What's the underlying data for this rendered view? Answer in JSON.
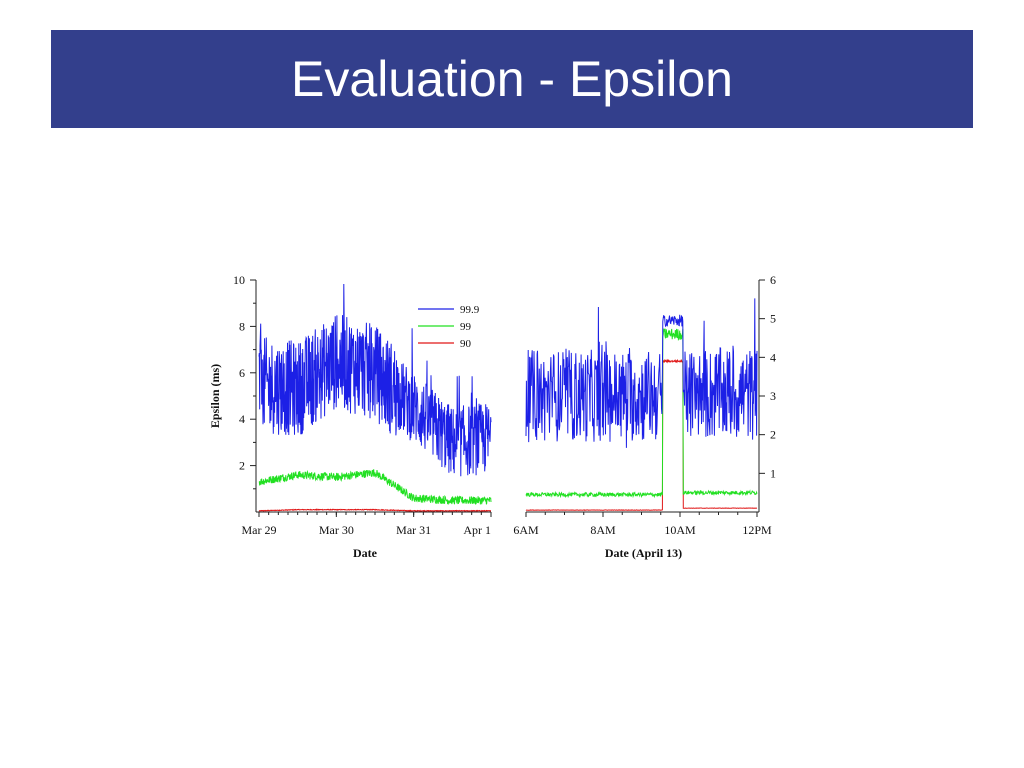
{
  "slide": {
    "title": "Evaluation - Epsilon"
  },
  "colors": {
    "title_bg": "#333f8c",
    "s999": "#1c20e6",
    "s99": "#22e022",
    "s90": "#e01818"
  },
  "chart_data": [
    {
      "type": "line",
      "xlabel": "Date",
      "ylabel": "Epsilon (ms)",
      "x_ticks": [
        "Mar 29",
        "Mar 30",
        "Mar 31",
        "Apr 1"
      ],
      "y_ticks": [
        2,
        4,
        6,
        8,
        10
      ],
      "ylim": [
        0,
        10
      ],
      "grid": false,
      "legend": "top-right",
      "series": [
        {
          "name": "99.9",
          "x": [
            "Mar 29",
            "Mar 29 12:00",
            "Mar 30",
            "Mar 30 12:00",
            "Mar 31",
            "Mar 31 12:00",
            "Apr 1"
          ],
          "values": [
            5.5,
            5.3,
            6.5,
            6.0,
            4.5,
            3.0,
            3.2
          ]
        },
        {
          "name": "99",
          "x": [
            "Mar 29",
            "Mar 29 12:00",
            "Mar 30",
            "Mar 30 12:00",
            "Mar 31",
            "Mar 31 12:00",
            "Apr 1"
          ],
          "values": [
            1.3,
            1.6,
            1.5,
            1.7,
            0.6,
            0.5,
            0.5
          ]
        },
        {
          "name": "90",
          "x": [
            "Mar 29",
            "Mar 29 12:00",
            "Mar 30",
            "Mar 30 12:00",
            "Mar 31",
            "Mar 31 12:00",
            "Apr 1"
          ],
          "values": [
            0.05,
            0.1,
            0.1,
            0.1,
            0.05,
            0.05,
            0.05
          ]
        }
      ]
    },
    {
      "type": "line",
      "xlabel": "Date (April 13)",
      "ylabel": "",
      "x_ticks": [
        "6AM",
        "8AM",
        "10AM",
        "12PM"
      ],
      "y_ticks": [
        1,
        2,
        3,
        4,
        5,
        6
      ],
      "ylim": [
        0,
        6
      ],
      "grid": false,
      "series": [
        {
          "name": "99.9",
          "x": [
            "6AM",
            "7AM",
            "8AM",
            "9AM",
            "9:45AM",
            "10AM",
            "10:15AM",
            "11AM",
            "12PM"
          ],
          "values": [
            3.0,
            3.2,
            2.9,
            3.1,
            4.9,
            4.9,
            3.0,
            3.1,
            3.0
          ]
        },
        {
          "name": "99",
          "x": [
            "6AM",
            "7AM",
            "8AM",
            "9AM",
            "9:45AM",
            "10AM",
            "10:15AM",
            "11AM",
            "12PM"
          ],
          "values": [
            0.4,
            0.4,
            0.45,
            0.45,
            4.5,
            4.5,
            0.5,
            0.5,
            0.5
          ]
        },
        {
          "name": "90",
          "x": [
            "6AM",
            "7AM",
            "8AM",
            "9AM",
            "9:45AM",
            "10AM",
            "10:15AM",
            "11AM",
            "12PM"
          ],
          "values": [
            0.05,
            0.05,
            0.05,
            0.05,
            3.9,
            3.9,
            0.05,
            0.05,
            0.05
          ]
        }
      ]
    }
  ]
}
